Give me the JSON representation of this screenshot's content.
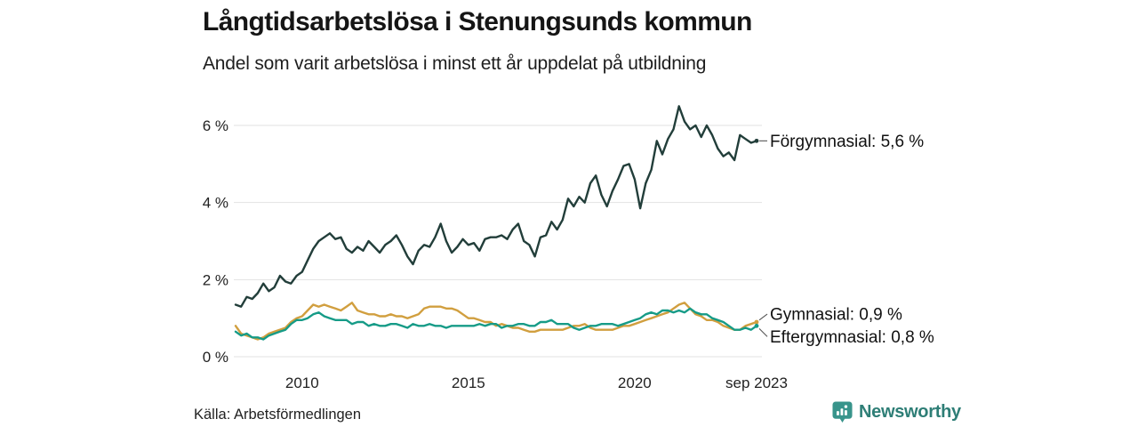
{
  "header": {
    "title": "Långtidsarbetslösa i Stenungsunds kommun",
    "subtitle": "Andel som varit arbetslösa i minst ett år uppdelat på utbildning"
  },
  "footer": {
    "source": "Källa: Arbetsförmedlingen",
    "brand": "Newsworthy",
    "brand_color": "#2E7E76",
    "brand_icon_color": "#38948B"
  },
  "chart_data": {
    "type": "line",
    "title": "Långtidsarbetslösa i Stenungsunds kommun",
    "subtitle": "Andel som varit arbetslösa i minst ett år uppdelat på utbildning",
    "ylabel": "",
    "xlabel": "",
    "y_unit": "%",
    "ylim": [
      0,
      6.9
    ],
    "x_start": 2008.0,
    "x_step": 0.16667,
    "x_end_label": "sep 2023",
    "grid": "horizontal",
    "legend_position": "right-end-labels",
    "yticks": [
      {
        "label": "0 %",
        "value": 0
      },
      {
        "label": "2 %",
        "value": 2
      },
      {
        "label": "4 %",
        "value": 4
      },
      {
        "label": "6 %",
        "value": 6
      }
    ],
    "xticks": [
      {
        "label": "2010",
        "year": 2010
      },
      {
        "label": "2015",
        "year": 2015
      },
      {
        "label": "2020",
        "year": 2020
      },
      {
        "label": "sep 2023",
        "year": 2023.667
      }
    ],
    "series": [
      {
        "name": "Förgymnasial",
        "color": "#223E3A",
        "end_value": "5,6 %",
        "end_label": "Förgymnasial: 5,6 %",
        "values": [
          1.35,
          1.3,
          1.55,
          1.5,
          1.65,
          1.9,
          1.7,
          1.8,
          2.1,
          1.95,
          1.9,
          2.1,
          2.2,
          2.5,
          2.8,
          3.0,
          3.1,
          3.2,
          3.05,
          3.1,
          2.8,
          2.7,
          2.85,
          2.75,
          3.0,
          2.85,
          2.7,
          2.9,
          3.0,
          3.15,
          2.9,
          2.6,
          2.4,
          2.75,
          2.9,
          2.85,
          3.1,
          3.45,
          3.0,
          2.7,
          2.85,
          3.05,
          2.9,
          2.95,
          2.75,
          3.05,
          3.1,
          3.1,
          3.15,
          3.05,
          3.3,
          3.45,
          3.0,
          2.9,
          2.6,
          3.1,
          3.15,
          3.5,
          3.3,
          3.55,
          4.1,
          3.9,
          4.15,
          4.0,
          4.5,
          4.7,
          4.2,
          3.9,
          4.3,
          4.6,
          4.95,
          5.0,
          4.6,
          3.85,
          4.5,
          4.85,
          5.6,
          5.25,
          5.65,
          5.9,
          6.5,
          6.1,
          5.9,
          6.0,
          5.7,
          6.0,
          5.75,
          5.4,
          5.2,
          5.3,
          5.1,
          5.75,
          5.65,
          5.55,
          5.6
        ]
      },
      {
        "name": "Gymnasial",
        "color": "#D19F3F",
        "end_value": "0,9 %",
        "end_label": "Gymnasial: 0,9 %",
        "values": [
          0.8,
          0.6,
          0.55,
          0.5,
          0.45,
          0.5,
          0.6,
          0.65,
          0.7,
          0.75,
          0.9,
          1.0,
          1.05,
          1.2,
          1.35,
          1.3,
          1.35,
          1.3,
          1.25,
          1.2,
          1.3,
          1.4,
          1.2,
          1.15,
          1.1,
          1.1,
          1.05,
          1.05,
          1.1,
          1.05,
          1.05,
          1.0,
          1.05,
          1.1,
          1.25,
          1.3,
          1.3,
          1.3,
          1.25,
          1.25,
          1.2,
          1.1,
          1.0,
          1.0,
          0.95,
          0.9,
          0.9,
          0.8,
          0.85,
          0.8,
          0.75,
          0.75,
          0.7,
          0.65,
          0.65,
          0.7,
          0.7,
          0.7,
          0.7,
          0.7,
          0.75,
          0.8,
          0.8,
          0.85,
          0.75,
          0.7,
          0.7,
          0.7,
          0.7,
          0.75,
          0.8,
          0.8,
          0.85,
          0.9,
          0.95,
          1.0,
          1.05,
          1.1,
          1.15,
          1.25,
          1.35,
          1.4,
          1.25,
          1.1,
          1.05,
          0.95,
          0.95,
          0.9,
          0.8,
          0.75,
          0.7,
          0.7,
          0.8,
          0.85,
          0.9
        ]
      },
      {
        "name": "Eftergymnasial",
        "color": "#169B87",
        "end_value": "0,8 %",
        "end_label": "Eftergymnasial: 0,8 %",
        "values": [
          0.65,
          0.55,
          0.6,
          0.5,
          0.5,
          0.45,
          0.55,
          0.6,
          0.65,
          0.7,
          0.85,
          0.95,
          0.95,
          1.0,
          1.1,
          1.15,
          1.05,
          1.0,
          0.95,
          0.95,
          0.95,
          0.85,
          0.9,
          0.9,
          0.8,
          0.85,
          0.8,
          0.8,
          0.85,
          0.85,
          0.8,
          0.75,
          0.85,
          0.8,
          0.8,
          0.85,
          0.8,
          0.8,
          0.75,
          0.8,
          0.8,
          0.8,
          0.8,
          0.8,
          0.85,
          0.8,
          0.85,
          0.85,
          0.75,
          0.8,
          0.8,
          0.85,
          0.85,
          0.8,
          0.8,
          0.9,
          0.9,
          0.95,
          0.85,
          0.85,
          0.85,
          0.75,
          0.7,
          0.75,
          0.8,
          0.8,
          0.85,
          0.85,
          0.85,
          0.8,
          0.85,
          0.9,
          0.95,
          1.0,
          1.1,
          1.15,
          1.1,
          1.2,
          1.2,
          1.15,
          1.2,
          1.15,
          1.25,
          1.15,
          1.1,
          1.1,
          1.0,
          0.95,
          0.9,
          0.8,
          0.7,
          0.7,
          0.75,
          0.7,
          0.8
        ]
      }
    ]
  }
}
